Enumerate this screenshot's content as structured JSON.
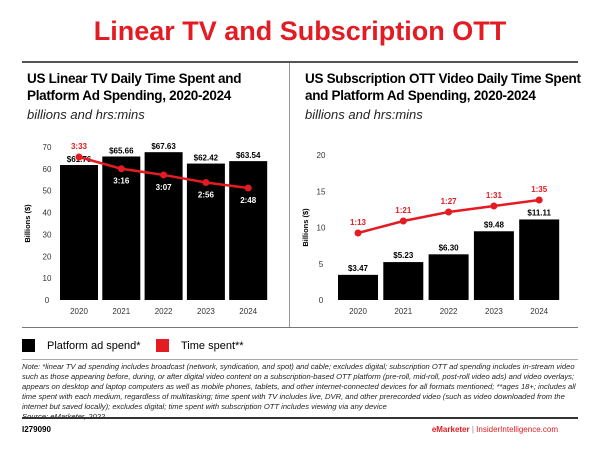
{
  "title": "Linear TV and Subscription OTT",
  "chart_data": [
    {
      "type": "bar",
      "title": "US Linear TV Daily Time Spent and Platform Ad Spending, 2020-2024",
      "subtitle": "billions and hrs:mins",
      "ylabel": "Billions ($)",
      "ylim": [
        0,
        70
      ],
      "yticks": [
        0,
        10,
        20,
        30,
        40,
        50,
        60,
        70
      ],
      "categories": [
        "2020",
        "2021",
        "2022",
        "2023",
        "2024"
      ],
      "series": [
        {
          "name": "Platform ad spend*",
          "type": "bar",
          "values": [
            61.76,
            65.66,
            67.63,
            62.42,
            63.54
          ],
          "labels": [
            "$61.76",
            "$65.66",
            "$67.63",
            "$62.42",
            "$63.54"
          ]
        },
        {
          "name": "Time spent**",
          "type": "line",
          "values_minutes": [
            213,
            196,
            187,
            176,
            168
          ],
          "labels": [
            "3:33",
            "3:16",
            "3:07",
            "2:56",
            "2:48"
          ]
        }
      ]
    },
    {
      "type": "bar",
      "title": "US Subscription OTT Video Daily Time Spent and Platform Ad Spending, 2020-2024",
      "subtitle": "billions and hrs:mins",
      "ylabel": "Billions ($)",
      "ylim": [
        0,
        20
      ],
      "yticks": [
        0,
        5,
        10,
        15,
        20
      ],
      "categories": [
        "2020",
        "2021",
        "2022",
        "2023",
        "2024"
      ],
      "series": [
        {
          "name": "Platform ad spend*",
          "type": "bar",
          "values": [
            3.47,
            5.23,
            6.3,
            9.48,
            11.11
          ],
          "labels": [
            "$3.47",
            "$5.23",
            "$6.30",
            "$9.48",
            "$11.11"
          ]
        },
        {
          "name": "Time spent**",
          "type": "line",
          "values_minutes": [
            73,
            81,
            87,
            91,
            95
          ],
          "labels": [
            "1:13",
            "1:21",
            "1:27",
            "1:31",
            "1:35"
          ]
        }
      ]
    }
  ],
  "legend": {
    "bar": "Platform ad spend*",
    "line": "Time spent**"
  },
  "colors": {
    "bar": "#000000",
    "line": "#e31b23"
  },
  "note": "Note: *linear TV ad spending includes broadcast (network, syndication, and spot) and cable; excludes digital; subscription OTT ad spending includes in-stream video such as those appearing before, during, or after digital video content on a subscription-based OTT platform (pre-roll, mid-roll, post-roll video ads) and video overlays; appears on desktop and laptop computers as well as mobile phones, tablets, and other internet-connected devices for all formats mentioned; **ages 18+; includes all time spent with each medium, regardless of multitasking; time spent with TV includes live, DVR, and other prerecorded video (such as video downloaded from the internet but saved locally); excludes digital; time spent with subscription OTT includes viewing via any device",
  "source": "Source: eMarketer, 2022",
  "footer": {
    "id": "I279090",
    "brand": "eMarketer",
    "sep": "|",
    "site": "InsiderIntelligence.com"
  }
}
